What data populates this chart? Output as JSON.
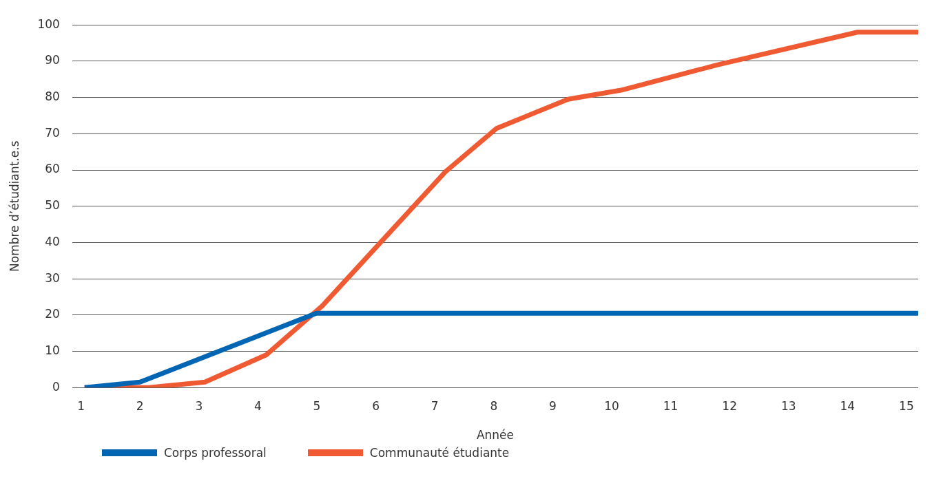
{
  "chart_data": {
    "type": "line",
    "xlabel": "Année",
    "ylabel": "Nombre d’étudiant.e.s",
    "xlim": [
      0.85,
      15.2
    ],
    "xticks": [
      1,
      2,
      3,
      4,
      5,
      6,
      7,
      8,
      9,
      10,
      11,
      12,
      13,
      14,
      15
    ],
    "ylim": [
      0,
      100
    ],
    "yticks": [
      0,
      10,
      20,
      30,
      40,
      50,
      60,
      70,
      80,
      90,
      100
    ],
    "grid": "y",
    "legend": "bottom",
    "marker": "none",
    "line_style": "solid",
    "series": [
      {
        "name": "Corps professoral",
        "color": "#0066b3",
        "x": [
          1.06,
          2.0,
          4.99,
          15.2
        ],
        "values": [
          0,
          1.5,
          20.5,
          20.5
        ]
      },
      {
        "name": "Communauté étudiante",
        "color": "#f05a32",
        "x": [
          1.06,
          2.15,
          3.1,
          4.14,
          5.09,
          7.18,
          8.05,
          9.26,
          10.16,
          11.8,
          14.17,
          15.2
        ],
        "values": [
          0,
          0,
          1.5,
          9,
          22.5,
          59.5,
          71.5,
          79.5,
          82,
          89,
          98,
          98
        ]
      }
    ]
  }
}
